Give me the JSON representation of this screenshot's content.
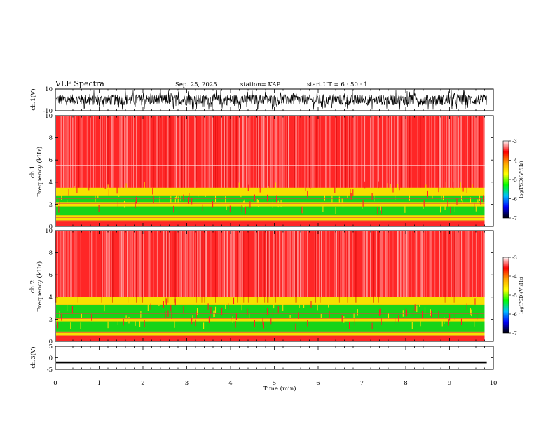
{
  "header": {
    "title": "VLF Spectra",
    "date": "Sep. 25, 2025",
    "station": "station= KAP",
    "start": "start  UT  =   6  : 50 : 1"
  },
  "colors": {
    "red": "#ff2020",
    "yellow": "#f7e000",
    "green": "#18d418",
    "trace": "#000000"
  },
  "colorbar": {
    "label": "log(PSD)(V²/Hz)",
    "ticks": [
      "-3",
      "-4",
      "-5",
      "-6",
      "-7"
    ],
    "stops": [
      "#ffffff",
      "#ff0000",
      "#ffa000",
      "#ffff00",
      "#00ff00",
      "#00c0ff",
      "#0000ff",
      "#000000"
    ]
  },
  "chart_data": [
    {
      "type": "line",
      "name": "ch1-waveform",
      "ylabel": "ch.1(V)",
      "ylim": [
        -10,
        10
      ],
      "yticks": [
        "10",
        "-10"
      ],
      "xlim": [
        0,
        10
      ],
      "description_values": {
        "center": 0,
        "typical_amplitude": 5
      }
    },
    {
      "type": "heatmap",
      "name": "ch1-spectrogram",
      "ylabel": "ch.1\nFrequency (kHz)",
      "ylabel_top": "ch.1",
      "ylabel_bottom": "Frequency (kHz)",
      "ylim": [
        0,
        10
      ],
      "yticks": [
        "0",
        "2",
        "4",
        "6",
        "8",
        "10"
      ],
      "xlim": [
        0,
        9.8
      ],
      "bands": [
        {
          "from": 0,
          "to": 0.5,
          "level": "red"
        },
        {
          "from": 0.5,
          "to": 1.0,
          "level": "yellow"
        },
        {
          "from": 1.0,
          "to": 1.8,
          "level": "green"
        },
        {
          "from": 1.8,
          "to": 2.2,
          "level": "yellow"
        },
        {
          "from": 2.2,
          "to": 2.8,
          "level": "green"
        },
        {
          "from": 2.8,
          "to": 3.5,
          "level": "yellow"
        },
        {
          "from": 3.5,
          "to": 10,
          "level": "red"
        }
      ],
      "line_5_5khz": 5.5
    },
    {
      "type": "heatmap",
      "name": "ch2-spectrogram",
      "ylabel_top": "ch.2",
      "ylabel_bottom": "Frequency (kHz)",
      "ylim": [
        0,
        10
      ],
      "yticks": [
        "0",
        "2",
        "4",
        "6",
        "8",
        "10"
      ],
      "xlim": [
        0,
        9.8
      ],
      "bands": [
        {
          "from": 0,
          "to": 0.5,
          "level": "red"
        },
        {
          "from": 0.5,
          "to": 0.9,
          "level": "yellow"
        },
        {
          "from": 0.9,
          "to": 1.8,
          "level": "green"
        },
        {
          "from": 1.8,
          "to": 2.1,
          "level": "yellow"
        },
        {
          "from": 2.1,
          "to": 3.3,
          "level": "green"
        },
        {
          "from": 3.3,
          "to": 4.0,
          "level": "yellow"
        },
        {
          "from": 4.0,
          "to": 10,
          "level": "red"
        }
      ]
    },
    {
      "type": "line",
      "name": "ch3-waveform",
      "ylabel": "ch.3(V)",
      "ylim": [
        -5,
        5
      ],
      "yticks": [
        "5",
        "0",
        "-5"
      ],
      "xlim": [
        0,
        10
      ],
      "description_values": {
        "center": -2,
        "typical_amplitude": 0.4
      }
    }
  ],
  "x_axis": {
    "label": "Time  (min)",
    "ticks": [
      "0",
      "1",
      "2",
      "3",
      "4",
      "5",
      "6",
      "7",
      "8",
      "9",
      "10"
    ],
    "range": [
      0,
      10
    ]
  }
}
